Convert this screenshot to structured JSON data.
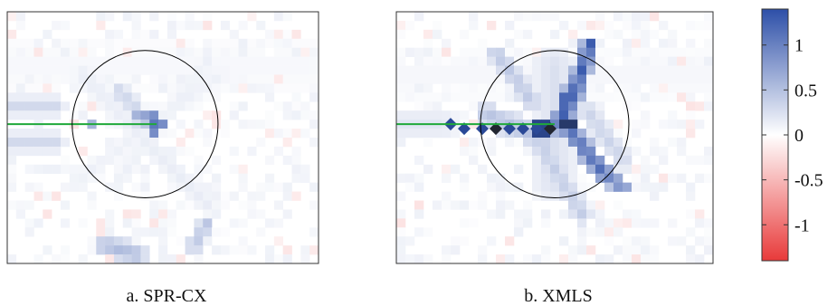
{
  "chart_data": {
    "type": "heatmap",
    "panels": [
      {
        "caption": "a. SPR-CX",
        "grid": {
          "cols": 35,
          "rows": 28
        },
        "circle": {
          "cx": 15.5,
          "cy": 12.5,
          "r": 8.2
        },
        "crack": {
          "x_from": 0,
          "x_to": 16.8,
          "y": 12.5
        },
        "features": [
          {
            "kind": "band",
            "from": [
              0,
              10.5
            ],
            "to": [
              5.5,
              10.5
            ],
            "value": 0.3,
            "width": 1.1
          },
          {
            "kind": "band",
            "from": [
              0,
              14.5
            ],
            "to": [
              5.5,
              14.5
            ],
            "value": 0.3,
            "width": 1.1
          },
          {
            "kind": "band",
            "from": [
              11,
              26
            ],
            "to": [
              14.5,
              27
            ],
            "value": 0.55,
            "width": 1.2
          },
          {
            "kind": "band",
            "from": [
              21,
              26
            ],
            "to": [
              22.5,
              23.5
            ],
            "value": 0.45,
            "width": 1
          },
          {
            "kind": "band",
            "from": [
              12.5,
              8.8
            ],
            "to": [
              14.5,
              10.8
            ],
            "value": 0.35,
            "width": 1
          },
          {
            "kind": "band",
            "from": [
              14.5,
              11.5
            ],
            "to": [
              16.8,
              12.8
            ],
            "value": 0.6,
            "width": 0.9
          },
          {
            "kind": "band",
            "from": [
              8.5,
              7
            ],
            "to": [
              22.5,
              21.5
            ],
            "value": 0.15,
            "width": 1.2
          },
          {
            "kind": "band",
            "from": [
              22.5,
              5.5
            ],
            "to": [
              12,
              19.5
            ],
            "value": 0.12,
            "width": 1
          },
          {
            "kind": "band",
            "from": [
              7.5,
              19
            ],
            "to": [
              24,
              7
            ],
            "value": 0.12,
            "width": 1
          },
          {
            "kind": "band",
            "from": [
              0,
              6
            ],
            "to": [
              34,
              6
            ],
            "value": 0.06,
            "width": 3
          },
          {
            "kind": "point",
            "at": [
              16.8,
              12.8
            ],
            "value": 1.3
          },
          {
            "kind": "point",
            "at": [
              16.2,
              11.5
            ],
            "value": 1.0
          },
          {
            "kind": "point",
            "at": [
              9.5,
              12.5
            ],
            "value": 0.6
          }
        ]
      },
      {
        "caption": "b. XMLS",
        "grid": {
          "cols": 35,
          "rows": 28
        },
        "circle": {
          "cx": 17.5,
          "cy": 12.5,
          "r": 8.2
        },
        "crack": {
          "x_from": 0,
          "x_to": 17.5,
          "y": 12.5
        },
        "features": [
          {
            "kind": "diamonds",
            "at": [
              [
                6,
                12.5
              ],
              [
                7.5,
                13
              ],
              [
                9.5,
                13
              ],
              [
                11,
                13
              ],
              [
                12.5,
                13
              ],
              [
                14,
                13
              ],
              [
                15.5,
                13
              ],
              [
                17,
                13
              ]
            ],
            "value": 1.5
          },
          {
            "kind": "band",
            "from": [
              18,
              12.5
            ],
            "to": [
              20,
              8
            ],
            "value": 1.3,
            "width": 1.2
          },
          {
            "kind": "band",
            "from": [
              20,
              8
            ],
            "to": [
              21.5,
              3.5
            ],
            "value": 1.3,
            "width": 1
          },
          {
            "kind": "band",
            "from": [
              18.5,
              12.5
            ],
            "to": [
              23,
              18
            ],
            "value": 1.2,
            "width": 1.1
          },
          {
            "kind": "band",
            "from": [
              23,
              18
            ],
            "to": [
              25,
              19.5
            ],
            "value": 1.0,
            "width": 1
          },
          {
            "kind": "band",
            "from": [
              15,
              10
            ],
            "to": [
              11,
              4.5
            ],
            "value": 0.45,
            "width": 1.1
          },
          {
            "kind": "band",
            "from": [
              16,
              15
            ],
            "to": [
              20.5,
              22.5
            ],
            "value": 0.4,
            "width": 1.2
          },
          {
            "kind": "band",
            "from": [
              10,
              11.5
            ],
            "to": [
              16,
              14
            ],
            "value": 0.5,
            "width": 1.4
          },
          {
            "kind": "band",
            "from": [
              17.5,
              6
            ],
            "to": [
              17.5,
              19
            ],
            "value": 0.25,
            "width": 2.5
          },
          {
            "kind": "band",
            "from": [
              0,
              12.5
            ],
            "to": [
              5,
              12.5
            ],
            "value": 0.2,
            "width": 2
          },
          {
            "kind": "band",
            "from": [
              21,
              11
            ],
            "to": [
              25,
              16.5
            ],
            "value": 0.35,
            "width": 1.2
          },
          {
            "kind": "band",
            "from": [
              0,
              7
            ],
            "to": [
              34,
              7
            ],
            "value": 0.07,
            "width": 3
          },
          {
            "kind": "point",
            "at": [
              19,
              12.5
            ],
            "value": 2.2
          },
          {
            "kind": "point",
            "at": [
              16,
              13
            ],
            "value": 2.2
          },
          {
            "kind": "point",
            "at": [
              18.5,
              10
            ],
            "value": 1.5
          }
        ]
      }
    ],
    "colorbar": {
      "min": -1.4,
      "max": 1.4,
      "ticks": [
        1,
        0.5,
        0,
        -0.5,
        -1
      ],
      "tick_labels": [
        "1",
        "0.5",
        "0",
        "-0.5",
        "-1"
      ],
      "colors": {
        "high": "#2d4fa8",
        "mid": "#ffffff",
        "low": "#e83a3a",
        "extreme": "#1f1f1f"
      }
    },
    "crack_color": "#1fa83a",
    "circle_color": "#000000"
  }
}
